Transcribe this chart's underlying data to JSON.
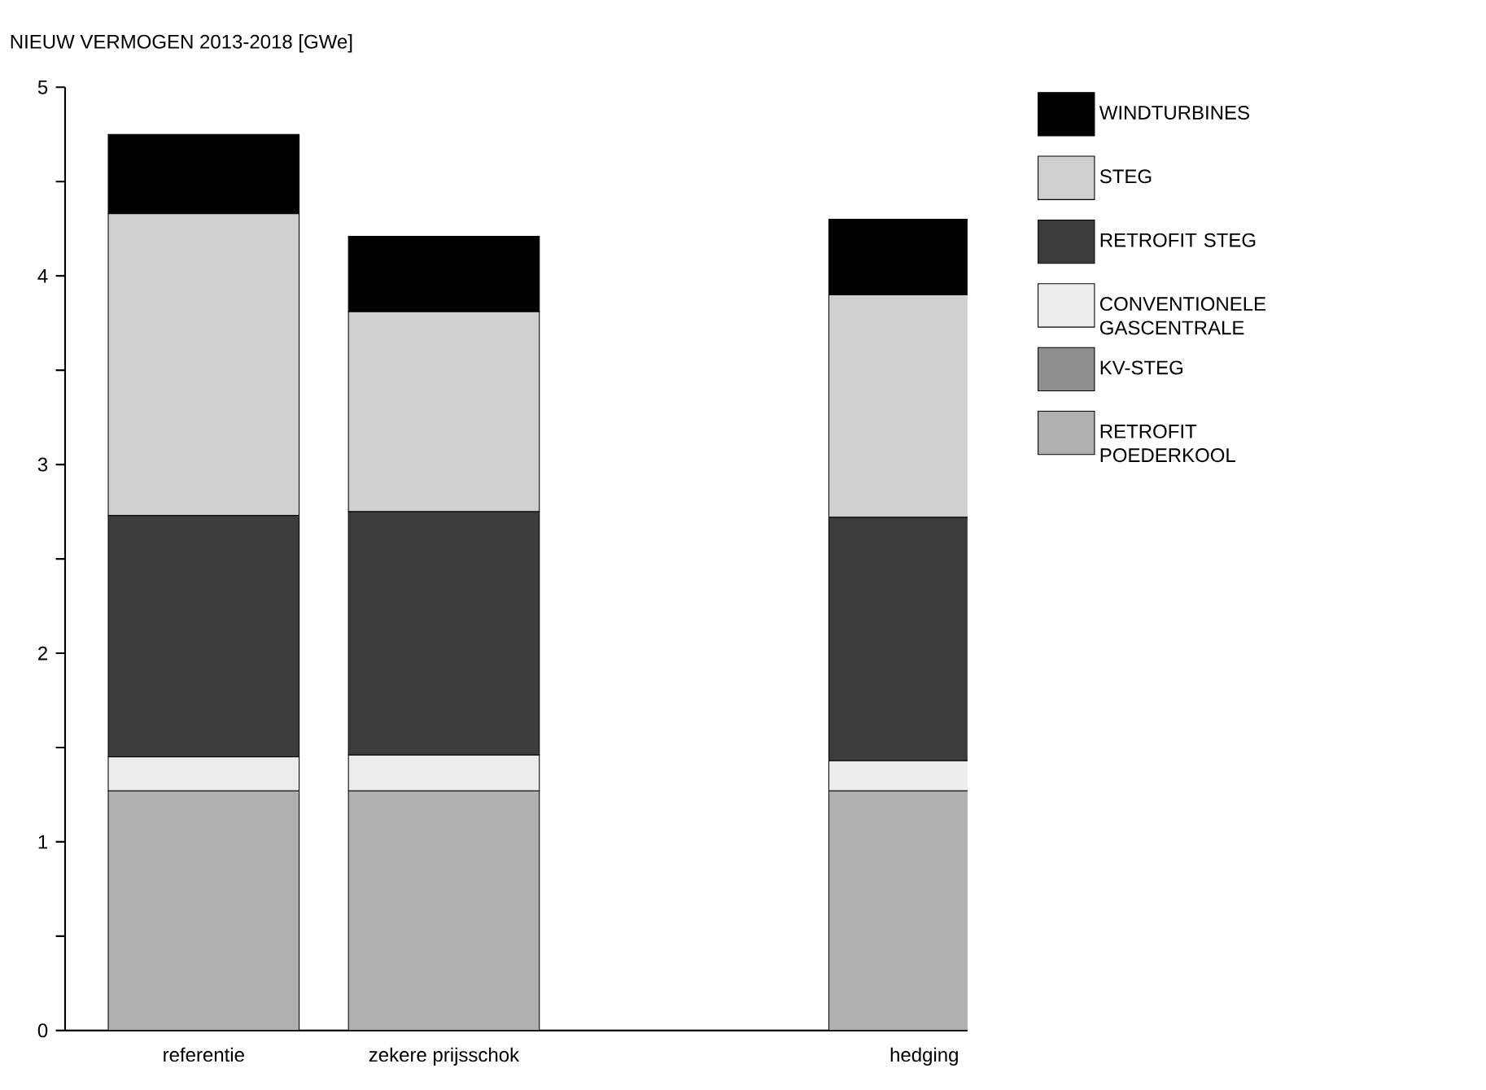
{
  "chart_data": {
    "type": "bar",
    "title": "NIEUW VERMOGEN 2013-2018 [GWe]",
    "stacked": true,
    "legend": "right",
    "categories": [
      "referentie",
      "zekere prijsschok",
      null,
      "hedging"
    ],
    "ylim": [
      0,
      5
    ],
    "yticks": [
      0,
      {
        "value": 0.5,
        "label": null
      },
      1,
      {
        "value": 1.5,
        "label": null
      },
      2,
      {
        "value": 2.5,
        "label": null
      },
      3,
      {
        "value": 3.5,
        "label": null
      },
      4,
      {
        "value": 4.5,
        "label": null
      },
      5
    ],
    "series": [
      {
        "name": "RETROFIT POEDERKOOL",
        "color": "#b0b0b0",
        "values": [
          1.27,
          1.27,
          null,
          1.27
        ]
      },
      {
        "name": "KV-STEG",
        "color": "#8f8f8f",
        "values": [
          0,
          0,
          null,
          0
        ]
      },
      {
        "name": "CONVENTIONELE GASCENTRALE",
        "color": "#ececec",
        "values": [
          0.18,
          0.19,
          null,
          0.16
        ]
      },
      {
        "name": "RETROFIT STEG",
        "color": "#3c3c3c",
        "values": [
          1.28,
          1.29,
          null,
          1.29
        ]
      },
      {
        "name": "STEG",
        "color": "#cfcfcf",
        "values": [
          1.6,
          1.06,
          null,
          1.18
        ]
      },
      {
        "name": "WINDTURBINES",
        "color": "#000000",
        "values": [
          0.42,
          0.4,
          null,
          0.4
        ]
      }
    ]
  }
}
